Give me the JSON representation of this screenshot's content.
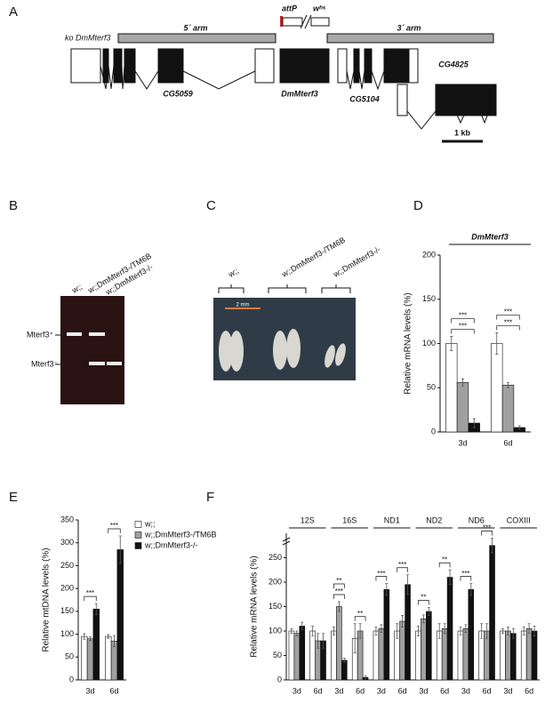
{
  "panels": [
    "A",
    "B",
    "C",
    "D",
    "E",
    "F"
  ],
  "gene_map": {
    "attP": "attP",
    "whs": "wʰˢ",
    "ko": "ko DmMterf3",
    "arm5": "5´ arm",
    "arm3": "3´ arm",
    "genes": [
      "CG5059",
      "DmMterf3",
      "CG5104",
      "CG4825"
    ],
    "scale": "1 kb"
  },
  "gel": {
    "lanes": [
      "w;;",
      "w;;DmMterf3-/TM6B",
      "w;;DmMterf3-/-"
    ],
    "bands": [
      "Mterf3⁺",
      "Mterf3⁻"
    ]
  },
  "larvae": {
    "lanes": [
      "w;;",
      "w;;DmMterf3-/TM6B",
      "w;;DmMterf3-/-"
    ],
    "scale": "2 mm"
  },
  "chart_data": [
    {
      "type": "bar",
      "title": "DmMterf3",
      "ylabel": "Relative mRNA levels (%)",
      "categories": [
        "3d",
        "6d"
      ],
      "series": [
        {
          "color": "#ffffff",
          "values": [
            100,
            100
          ],
          "errors": [
            8,
            12
          ]
        },
        {
          "color": "#a0a0a0",
          "values": [
            56,
            53
          ],
          "errors": [
            4,
            3
          ]
        },
        {
          "color": "#111111",
          "values": [
            10,
            5
          ],
          "errors": [
            5,
            2
          ]
        }
      ],
      "ylim": [
        0,
        200
      ],
      "yticks": [
        0,
        50,
        100,
        150,
        200
      ],
      "annotations": [
        {
          "text": "***",
          "category": 0
        },
        {
          "text": "***",
          "category": 0
        },
        {
          "text": "***",
          "category": 1
        },
        {
          "text": "***",
          "category": 1
        }
      ]
    },
    {
      "type": "bar",
      "ylabel": "Relative mtDNA levels (%)",
      "categories": [
        "3d",
        "6d"
      ],
      "series": [
        {
          "name": "w;;",
          "color": "#ffffff",
          "values": [
            95,
            95
          ],
          "errors": [
            6,
            4
          ]
        },
        {
          "name": "w;;DmMterf3-/TM6B",
          "color": "#a0a0a0",
          "values": [
            90,
            85
          ],
          "errors": [
            4,
            12
          ]
        },
        {
          "name": "w;;DmMterf3-/-",
          "color": "#111111",
          "values": [
            155,
            285
          ],
          "errors": [
            12,
            30
          ]
        }
      ],
      "ylim": [
        0,
        350
      ],
      "yticks": [
        0,
        50,
        100,
        150,
        200,
        250,
        300,
        350
      ],
      "legend": "right",
      "annotations": [
        {
          "text": "***",
          "category": 0
        },
        {
          "text": "***",
          "category": 1
        }
      ]
    },
    {
      "type": "bar",
      "ylabel": "Relative mRNA levels (%)",
      "groups": [
        "12S",
        "16S",
        "ND1",
        "ND2",
        "ND6",
        "COXIII"
      ],
      "categories": [
        "3d",
        "6d",
        "3d",
        "6d",
        "3d",
        "6d",
        "3d",
        "6d",
        "3d",
        "6d",
        "3d",
        "6d"
      ],
      "series": [
        {
          "color": "#ffffff",
          "values": [
            100,
            100,
            100,
            85,
            100,
            100,
            100,
            100,
            100,
            100,
            100,
            100
          ],
          "errors": [
            5,
            10,
            8,
            30,
            8,
            15,
            10,
            15,
            8,
            15,
            5,
            8
          ]
        },
        {
          "color": "#a0a0a0",
          "values": [
            95,
            80,
            150,
            100,
            105,
            120,
            125,
            105,
            105,
            100,
            100,
            105
          ],
          "errors": [
            5,
            15,
            10,
            15,
            8,
            12,
            8,
            10,
            8,
            15,
            8,
            10
          ]
        },
        {
          "color": "#111111",
          "values": [
            110,
            80,
            40,
            5,
            185,
            195,
            140,
            210,
            185,
            275,
            95,
            100
          ],
          "errors": [
            8,
            15,
            4,
            3,
            12,
            20,
            8,
            15,
            12,
            15,
            10,
            10
          ]
        }
      ],
      "ylim": [
        0,
        300
      ],
      "yticks": [
        0,
        50,
        100,
        150,
        200,
        250
      ],
      "annotations": [
        {
          "text": "***",
          "category": 2
        },
        {
          "text": "**",
          "category": 2
        },
        {
          "text": "**",
          "category": 3
        },
        {
          "text": "***",
          "category": 4
        },
        {
          "text": "***",
          "category": 5
        },
        {
          "text": "**",
          "category": 6
        },
        {
          "text": "**",
          "category": 7
        },
        {
          "text": "***",
          "category": 8
        },
        {
          "text": "***",
          "category": 9
        }
      ]
    }
  ]
}
